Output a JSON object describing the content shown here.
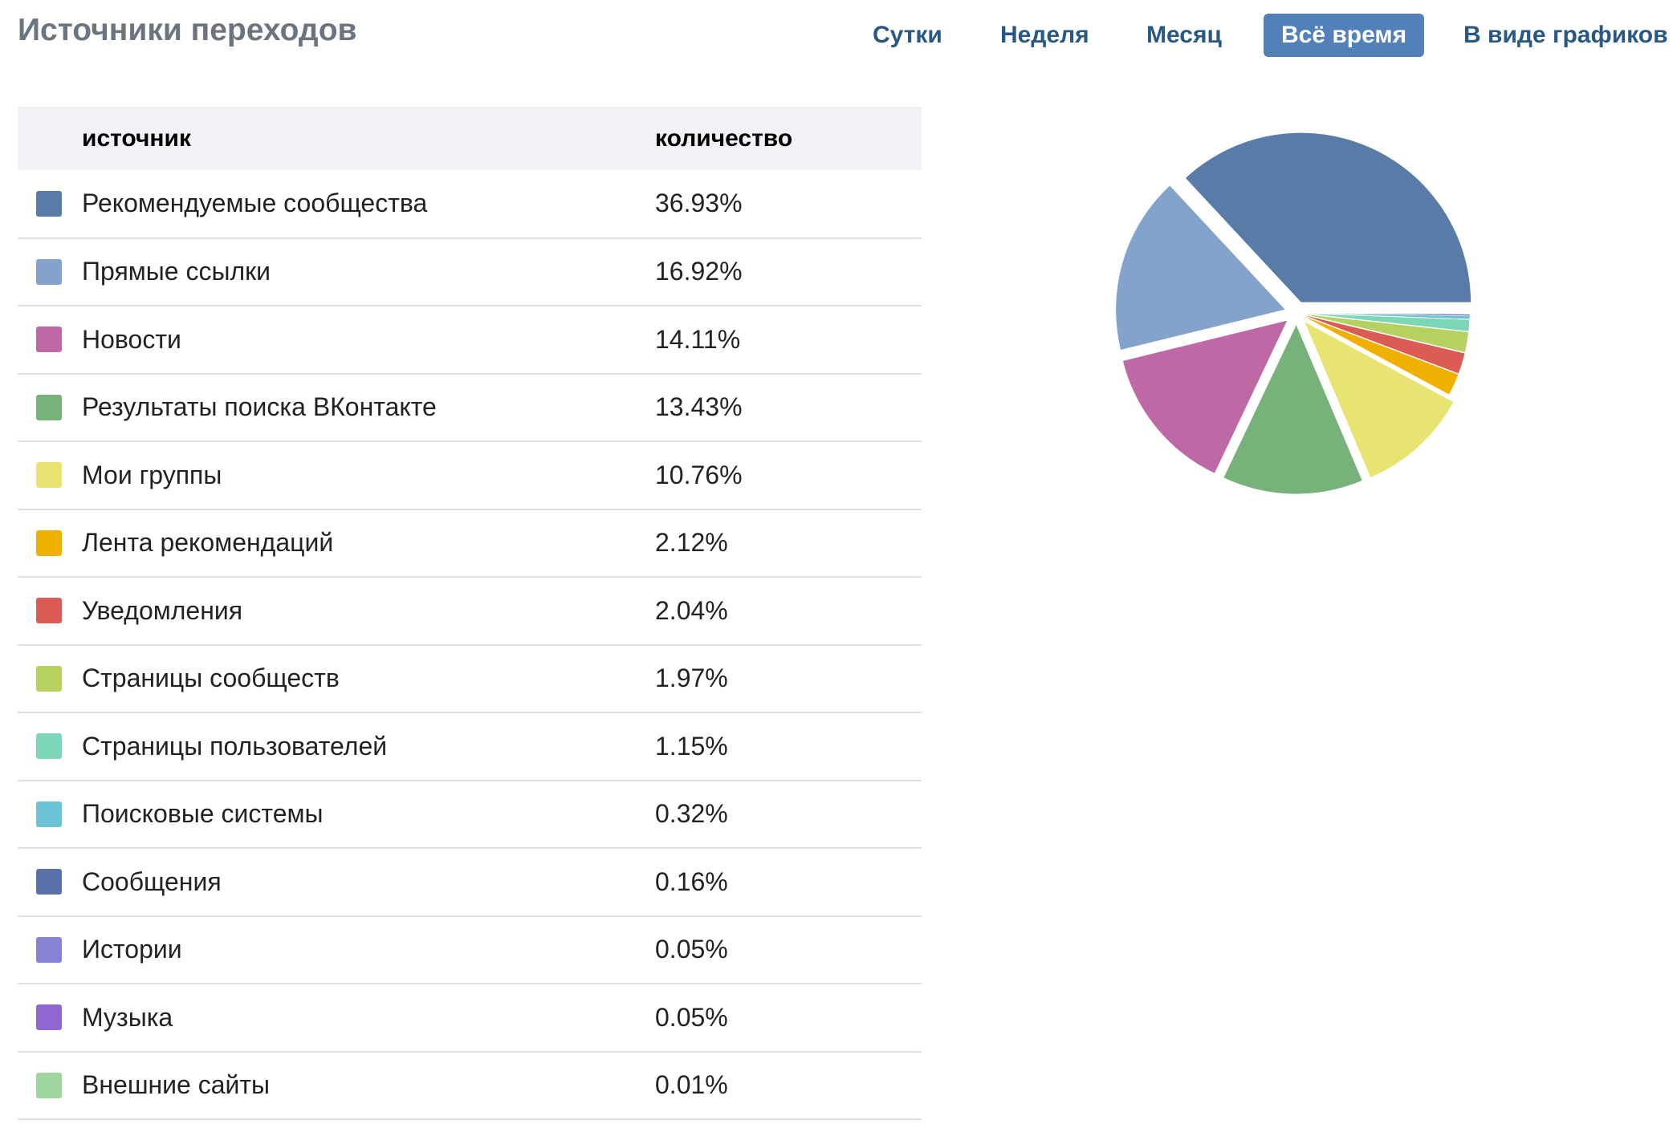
{
  "header": {
    "title": "Источники переходов",
    "tabs": [
      {
        "label": "Сутки",
        "active": false
      },
      {
        "label": "Неделя",
        "active": false
      },
      {
        "label": "Месяц",
        "active": false
      },
      {
        "label": "Всё время",
        "active": true
      },
      {
        "label": "В виде графиков",
        "active": false
      }
    ],
    "active_tab_color": "#5181b8",
    "tab_text_color": "#2a5885"
  },
  "table": {
    "header_background": "#f0f2f5",
    "columns": [
      "источник",
      "количество"
    ],
    "rows": [
      {
        "source": "Рекомендуемые сообщества",
        "value": "36.93%",
        "color": "#587ba8"
      },
      {
        "source": "Прямые ссылки",
        "value": "16.92%",
        "color": "#83a3cd"
      },
      {
        "source": "Новости",
        "value": "14.11%",
        "color": "#be68a6"
      },
      {
        "source": "Результаты поиска ВКонтакте",
        "value": "13.43%",
        "color": "#76b27a"
      },
      {
        "source": "Мои группы",
        "value": "10.76%",
        "color": "#e8e471"
      },
      {
        "source": "Лента рекомендаций",
        "value": "2.12%",
        "color": "#f0b000"
      },
      {
        "source": "Уведомления",
        "value": "2.04%",
        "color": "#dc5b55"
      },
      {
        "source": "Страницы сообществ",
        "value": "1.97%",
        "color": "#b6d160"
      },
      {
        "source": "Страницы пользователей",
        "value": "1.15%",
        "color": "#7dd6b6"
      },
      {
        "source": "Поисковые системы",
        "value": "0.32%",
        "color": "#6ac4d6"
      },
      {
        "source": "Сообщения",
        "value": "0.16%",
        "color": "#5a70a8"
      },
      {
        "source": "Истории",
        "value": "0.05%",
        "color": "#8683d6"
      },
      {
        "source": "Музыка",
        "value": "0.05%",
        "color": "#8f66d2"
      },
      {
        "source": "Внешние сайты",
        "value": "0.01%",
        "color": "#9fd6a0"
      }
    ]
  },
  "chart_data": {
    "type": "pie",
    "title": "",
    "categories": [
      "Рекомендуемые сообщества",
      "Прямые ссылки",
      "Новости",
      "Результаты поиска ВКонтакте",
      "Мои группы",
      "Лента рекомендаций",
      "Уведомления",
      "Страницы сообществ",
      "Страницы пользователей",
      "Поисковые системы",
      "Сообщения",
      "Истории",
      "Музыка",
      "Внешние сайты"
    ],
    "values": [
      36.93,
      16.92,
      14.11,
      13.43,
      10.76,
      2.12,
      2.04,
      1.97,
      1.15,
      0.32,
      0.16,
      0.05,
      0.05,
      0.01
    ],
    "colors": [
      "#587ba8",
      "#83a3cd",
      "#be68a6",
      "#76b27a",
      "#e8e471",
      "#f0b000",
      "#dc5b55",
      "#b6d160",
      "#7dd6b6",
      "#6ac4d6",
      "#5a70a8",
      "#8683d6",
      "#8f66d2",
      "#9fd6a0"
    ],
    "start_angle_deg": 0,
    "direction": "counterclockwise",
    "exploded": true,
    "legend": "table-left"
  }
}
